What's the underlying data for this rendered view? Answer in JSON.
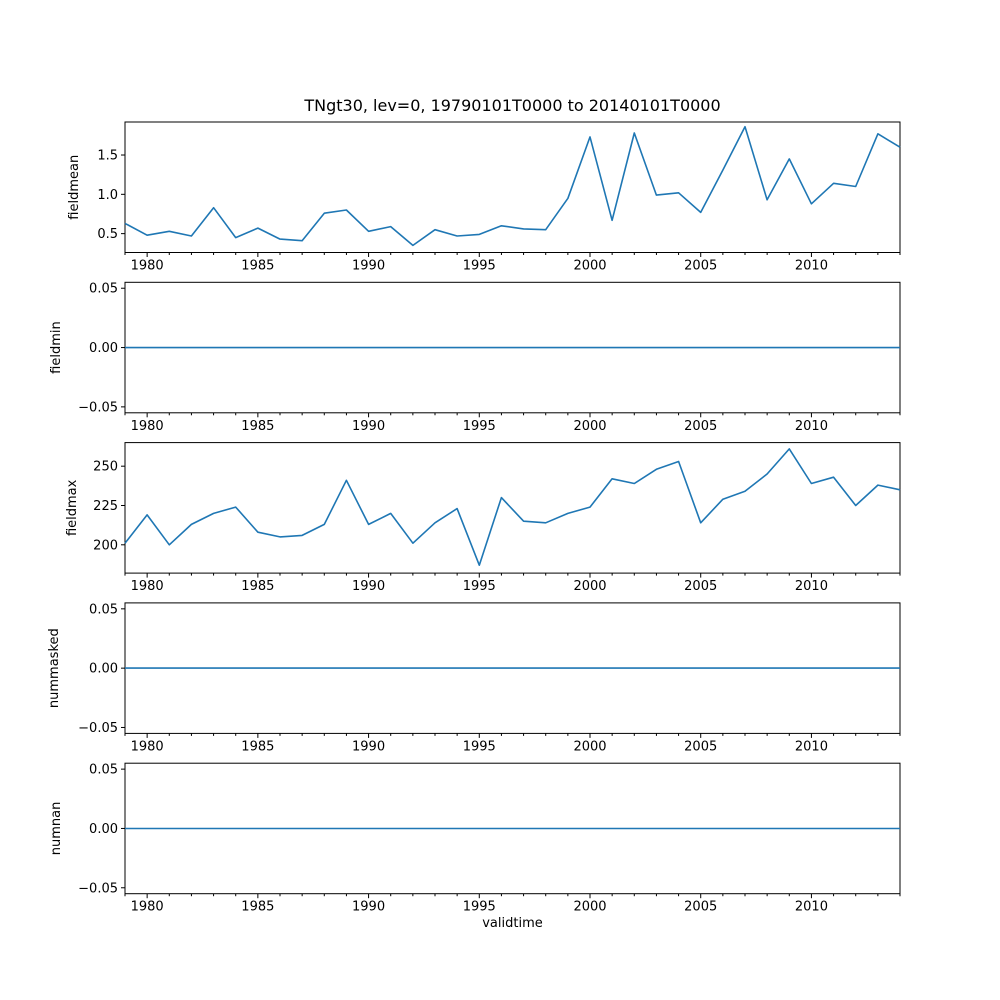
{
  "figure": {
    "background_color": "#ffffff",
    "axis_color": "#000000",
    "text_color": "#000000"
  },
  "chart_data": {
    "type": "line",
    "title": "TNgt30, lev=0, 19790101T0000 to 20140101T0000",
    "xlabel": "validtime",
    "grid": false,
    "legend": null,
    "line_color": "#1f77b4",
    "x": [
      1979,
      1980,
      1981,
      1982,
      1983,
      1984,
      1985,
      1986,
      1987,
      1988,
      1989,
      1990,
      1991,
      1992,
      1993,
      1994,
      1995,
      1996,
      1997,
      1998,
      1999,
      2000,
      2001,
      2002,
      2003,
      2004,
      2005,
      2006,
      2007,
      2008,
      2009,
      2010,
      2011,
      2012,
      2013,
      2014
    ],
    "xlim": [
      1979,
      2014
    ],
    "xticks": [
      1980,
      1985,
      1990,
      1995,
      2000,
      2005,
      2010
    ],
    "xtick_labels": [
      "1980",
      "1985",
      "1990",
      "1995",
      "2000",
      "2005",
      "2010"
    ],
    "minor_xtick_interval_years": 1,
    "subplots": [
      {
        "ylabel": "fieldmean",
        "yticks": [
          0.5,
          1.0,
          1.5
        ],
        "ytick_labels": [
          "0.5",
          "1.0",
          "1.5"
        ],
        "ylim": [
          0.26,
          1.92
        ],
        "values": [
          0.63,
          0.48,
          0.53,
          0.47,
          0.83,
          0.45,
          0.57,
          0.43,
          0.41,
          0.76,
          0.8,
          0.53,
          0.59,
          0.35,
          0.55,
          0.47,
          0.49,
          0.6,
          0.56,
          0.55,
          0.95,
          1.73,
          0.67,
          1.78,
          0.99,
          1.02,
          0.77,
          1.31,
          1.86,
          0.93,
          1.45,
          0.88,
          1.14,
          1.1,
          1.77,
          1.6
        ]
      },
      {
        "ylabel": "fieldmin",
        "yticks": [
          -0.05,
          0.0,
          0.05
        ],
        "ytick_labels": [
          "−0.05",
          "0.00",
          "0.05"
        ],
        "ylim": [
          -0.055,
          0.055
        ],
        "values": [
          0,
          0,
          0,
          0,
          0,
          0,
          0,
          0,
          0,
          0,
          0,
          0,
          0,
          0,
          0,
          0,
          0,
          0,
          0,
          0,
          0,
          0,
          0,
          0,
          0,
          0,
          0,
          0,
          0,
          0,
          0,
          0,
          0,
          0,
          0,
          0
        ]
      },
      {
        "ylabel": "fieldmax",
        "yticks": [
          200,
          225,
          250
        ],
        "ytick_labels": [
          "200",
          "225",
          "250"
        ],
        "ylim": [
          182,
          265
        ],
        "values": [
          201,
          219,
          200,
          213,
          220,
          224,
          208,
          205,
          206,
          213,
          241,
          213,
          220,
          201,
          214,
          223,
          187,
          230,
          215,
          214,
          220,
          224,
          242,
          239,
          248,
          253,
          214,
          229,
          234,
          245,
          261,
          239,
          243,
          225,
          238,
          235
        ]
      },
      {
        "ylabel": "nummasked",
        "yticks": [
          -0.05,
          0.0,
          0.05
        ],
        "ytick_labels": [
          "−0.05",
          "0.00",
          "0.05"
        ],
        "ylim": [
          -0.055,
          0.055
        ],
        "values": [
          0,
          0,
          0,
          0,
          0,
          0,
          0,
          0,
          0,
          0,
          0,
          0,
          0,
          0,
          0,
          0,
          0,
          0,
          0,
          0,
          0,
          0,
          0,
          0,
          0,
          0,
          0,
          0,
          0,
          0,
          0,
          0,
          0,
          0,
          0,
          0
        ]
      },
      {
        "ylabel": "numnan",
        "yticks": [
          -0.05,
          0.0,
          0.05
        ],
        "ytick_labels": [
          "−0.05",
          "0.00",
          "0.05"
        ],
        "ylim": [
          -0.055,
          0.055
        ],
        "values": [
          0,
          0,
          0,
          0,
          0,
          0,
          0,
          0,
          0,
          0,
          0,
          0,
          0,
          0,
          0,
          0,
          0,
          0,
          0,
          0,
          0,
          0,
          0,
          0,
          0,
          0,
          0,
          0,
          0,
          0,
          0,
          0,
          0,
          0,
          0,
          0
        ]
      }
    ]
  }
}
